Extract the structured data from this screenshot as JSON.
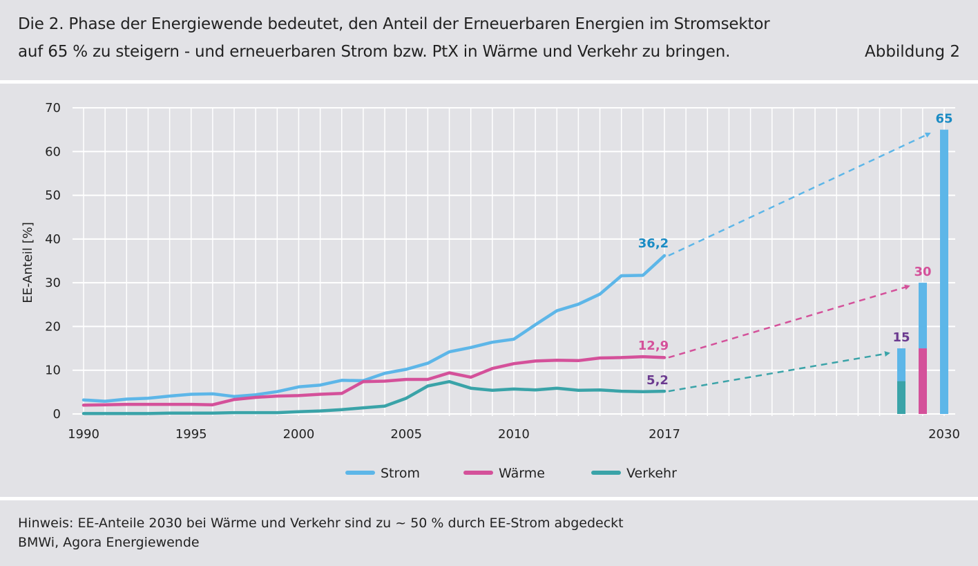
{
  "header": {
    "title_line1": "Die 2. Phase der Energiewende bedeutet, den Anteil der Erneuerbaren Energien im Stromsektor",
    "title_line2": "auf 65 % zu steigern - und erneuerbaren Strom bzw. PtX in Wärme und Verkehr zu bringen.",
    "figure_label": "Abbildung 2"
  },
  "footer": {
    "note": "Hinweis: EE-Anteile 2030 bei Wärme und Verkehr sind zu ~ 50 % durch EE-Strom abgedeckt",
    "source": "BMWi, Agora Energiewende"
  },
  "chart_data": {
    "type": "line",
    "ylabel": "EE-Anteil [%]",
    "ylim": [
      0,
      70
    ],
    "yticks": [
      0,
      10,
      20,
      30,
      40,
      50,
      60,
      70
    ],
    "xticks": [
      "1990",
      "1995",
      "2000",
      "2005",
      "2010",
      "2017",
      "2030"
    ],
    "grid": true,
    "x": [
      1990,
      1991,
      1992,
      1993,
      1994,
      1995,
      1996,
      1997,
      1998,
      1999,
      2000,
      2001,
      2002,
      2003,
      2004,
      2005,
      2006,
      2007,
      2008,
      2009,
      2010,
      2011,
      2012,
      2013,
      2014,
      2015,
      2016,
      2017
    ],
    "series": [
      {
        "name": "Strom",
        "color": "#5db6e8",
        "values": [
          3.2,
          2.9,
          3.4,
          3.6,
          4.1,
          4.5,
          4.6,
          4.0,
          4.4,
          5.1,
          6.2,
          6.6,
          7.7,
          7.6,
          9.3,
          10.2,
          11.6,
          14.2,
          15.2,
          16.4,
          17.1,
          20.4,
          23.6,
          25.1,
          27.4,
          31.6,
          31.7,
          36.2
        ],
        "target_2030": 65,
        "end_label": "36,2",
        "end_label_color": "#1a8bc4"
      },
      {
        "name": "Wärme",
        "color": "#d4519a",
        "values": [
          2.0,
          2.1,
          2.2,
          2.2,
          2.2,
          2.2,
          2.1,
          3.3,
          3.8,
          4.1,
          4.2,
          4.5,
          4.7,
          7.4,
          7.5,
          7.9,
          7.9,
          9.4,
          8.4,
          10.4,
          11.5,
          12.1,
          12.3,
          12.2,
          12.8,
          12.9,
          13.1,
          12.9
        ],
        "target_2030": 30,
        "end_label": "12,9",
        "end_label_color": "#d4519a"
      },
      {
        "name": "Verkehr",
        "color": "#3aa3a8",
        "values": [
          0.1,
          0.1,
          0.1,
          0.1,
          0.2,
          0.2,
          0.2,
          0.3,
          0.3,
          0.3,
          0.5,
          0.7,
          1.0,
          1.4,
          1.8,
          3.6,
          6.4,
          7.4,
          5.9,
          5.4,
          5.7,
          5.5,
          5.9,
          5.4,
          5.5,
          5.2,
          5.1,
          5.2
        ],
        "target_2030": 15,
        "end_label": "5,2",
        "end_label_color": "#6b3a8f"
      }
    ],
    "bars_2030": [
      {
        "name": "Verkehr",
        "total": 15,
        "ee_strom_part": 7.5,
        "label": "15",
        "label_color": "#6b3a8f"
      },
      {
        "name": "Wärme",
        "total": 30,
        "ee_strom_part": 15,
        "label": "30",
        "label_color": "#d4519a"
      },
      {
        "name": "Strom",
        "total": 65,
        "label": "65",
        "label_color": "#1a8bc4"
      }
    ],
    "legend": [
      {
        "label": "Strom",
        "color": "#5db6e8"
      },
      {
        "label": "Wärme",
        "color": "#d4519a"
      },
      {
        "label": "Verkehr",
        "color": "#3aa3a8"
      }
    ]
  }
}
